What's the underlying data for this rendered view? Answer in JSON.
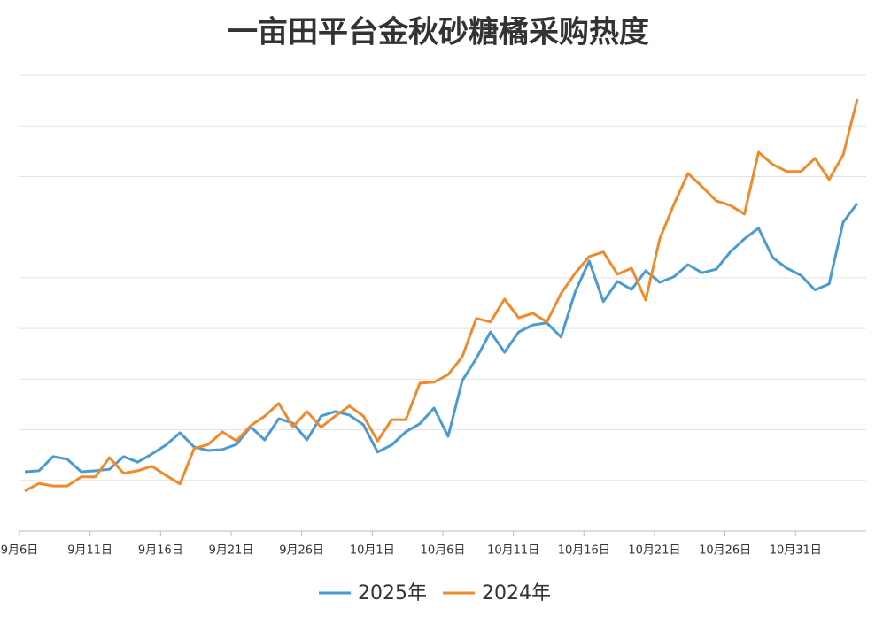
{
  "chart_data": {
    "type": "line",
    "title": "一亩田平台金秋砂糖橘采购热度",
    "categories": [
      "9月6日",
      null,
      null,
      null,
      null,
      "9月11日",
      null,
      null,
      null,
      null,
      "9月16日",
      null,
      null,
      null,
      null,
      "9月21日",
      null,
      null,
      null,
      null,
      "9月26日",
      null,
      null,
      null,
      null,
      "10月1日",
      null,
      null,
      null,
      null,
      "10月6日",
      null,
      null,
      null,
      null,
      "10月11日",
      null,
      null,
      null,
      null,
      "10月16日",
      null,
      null,
      null,
      null,
      "10月21日",
      null,
      null,
      null,
      null,
      "10月26日",
      null,
      null,
      null,
      null,
      "10月31日",
      null,
      null,
      null,
      null
    ],
    "series": [
      {
        "name": "2025年",
        "color": "#4a9bd1",
        "values": [
          1.17,
          1.19,
          1.47,
          1.42,
          1.17,
          1.19,
          1.22,
          1.47,
          1.36,
          1.52,
          1.7,
          1.94,
          1.66,
          1.59,
          1.61,
          1.71,
          2.06,
          1.8,
          2.22,
          2.13,
          1.8,
          2.27,
          2.36,
          2.29,
          2.1,
          1.56,
          1.7,
          1.96,
          2.12,
          2.43,
          1.87,
          2.97,
          3.41,
          3.93,
          3.53,
          3.93,
          4.07,
          4.11,
          3.83,
          4.72,
          5.33,
          4.53,
          4.93,
          4.77,
          5.14,
          4.91,
          5.02,
          5.26,
          5.1,
          5.17,
          5.51,
          5.77,
          5.98,
          5.4,
          5.19,
          5.05,
          4.76,
          4.88,
          6.1,
          6.47
        ]
      },
      {
        "name": "2024年",
        "color": "#f08a2b",
        "values": [
          0.79,
          0.94,
          0.89,
          0.89,
          1.07,
          1.07,
          1.45,
          1.14,
          1.19,
          1.28,
          1.1,
          0.93,
          1.63,
          1.71,
          1.96,
          1.78,
          2.08,
          2.27,
          2.52,
          2.06,
          2.36,
          2.05,
          2.27,
          2.47,
          2.27,
          1.78,
          2.2,
          2.2,
          2.92,
          2.94,
          3.09,
          3.44,
          4.2,
          4.13,
          4.58,
          4.21,
          4.3,
          4.13,
          4.69,
          5.09,
          5.42,
          5.51,
          5.07,
          5.19,
          4.56,
          5.77,
          6.45,
          7.06,
          6.8,
          6.52,
          6.43,
          6.26,
          7.48,
          7.24,
          7.1,
          7.1,
          7.36,
          6.94,
          7.43,
          8.53
        ]
      }
    ],
    "ylim": [
      0,
      9
    ],
    "yticks": [
      0,
      1,
      2,
      3,
      4,
      5,
      6,
      7,
      8,
      9
    ],
    "grid": true
  }
}
